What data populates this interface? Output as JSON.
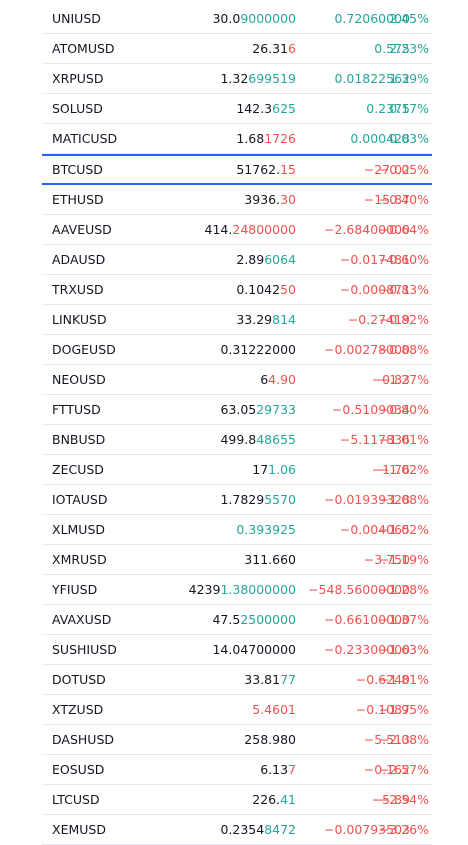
{
  "watchlist": {
    "rows": [
      {
        "symbol": "UNIUSD",
        "last_base": "30.0",
        "last_tail": "9000000",
        "last_dir": "up",
        "change": "0.72060000",
        "change_pct": "2.45%",
        "dir": "up"
      },
      {
        "symbol": "ATOMUSD",
        "last_base": "26.31",
        "last_tail": "6",
        "last_dir": "down",
        "change": "0.575",
        "change_pct": "2.23%",
        "dir": "up"
      },
      {
        "symbol": "XRPUSD",
        "last_base": "1.32",
        "last_tail": "699519",
        "last_dir": "up",
        "change": "0.01822562",
        "change_pct": "1.39%",
        "dir": "up"
      },
      {
        "symbol": "SOLUSD",
        "last_base": "142.3",
        "last_tail": "625",
        "last_dir": "up",
        "change": "0.2375",
        "change_pct": "0.17%",
        "dir": "up"
      },
      {
        "symbol": "MATICUSD",
        "last_base": "1.68",
        "last_tail": "1726",
        "last_dir": "down",
        "change": "0.000428",
        "change_pct": "0.03%",
        "dir": "up"
      },
      {
        "symbol": "BTCUSD",
        "last_base": "51762.",
        "last_tail": "15",
        "last_dir": "down",
        "change": "−27.02",
        "change_pct": "−0.05%",
        "dir": "down",
        "selected": true
      },
      {
        "symbol": "ETHUSD",
        "last_base": "3936.",
        "last_tail": "30",
        "last_dir": "down",
        "change": "−15.87",
        "change_pct": "−0.40%",
        "dir": "down"
      },
      {
        "symbol": "AAVEUSD",
        "last_base": "414.",
        "last_tail": "24800000",
        "last_dir": "down",
        "change": "−2.68400000",
        "change_pct": "−0.64%",
        "dir": "down"
      },
      {
        "symbol": "ADAUSD",
        "last_base": "2.89",
        "last_tail": "6064",
        "last_dir": "up",
        "change": "−0.017481",
        "change_pct": "−0.60%",
        "dir": "down"
      },
      {
        "symbol": "TRXUSD",
        "last_base": "0.1042",
        "last_tail": "50",
        "last_dir": "down",
        "change": "−0.000871",
        "change_pct": "−0.83%",
        "dir": "down"
      },
      {
        "symbol": "LINKUSD",
        "last_base": "33.29",
        "last_tail": "814",
        "last_dir": "up",
        "change": "−0.27419",
        "change_pct": "−0.82%",
        "dir": "down"
      },
      {
        "symbol": "DOGEUSD",
        "last_base": "0.31222000",
        "last_tail": "",
        "last_dir": "none",
        "change": "−0.00278000",
        "change_pct": "−0.88%",
        "dir": "down"
      },
      {
        "symbol": "NEOUSD",
        "last_base": "6",
        "last_tail": "4.90",
        "last_dir": "down",
        "change": "−0.83",
        "change_pct": "−1.27%",
        "dir": "down"
      },
      {
        "symbol": "FTTUSD",
        "last_base": "63.05",
        "last_tail": "29733",
        "last_dir": "up",
        "change": "−0.5109034",
        "change_pct": "−0.80%",
        "dir": "down"
      },
      {
        "symbol": "BNBUSD",
        "last_base": "499.8",
        "last_tail": "48655",
        "last_dir": "up",
        "change": "−5.117836",
        "change_pct": "−1.01%",
        "dir": "down"
      },
      {
        "symbol": "ZECUSD",
        "last_base": "17",
        "last_tail": "1.06",
        "last_dir": "up",
        "change": "−1.76",
        "change_pct": "−1.02%",
        "dir": "down"
      },
      {
        "symbol": "IOTAUSD",
        "last_base": "1.7829",
        "last_tail": "5570",
        "last_dir": "up",
        "change": "−0.01939328",
        "change_pct": "−1.08%",
        "dir": "down"
      },
      {
        "symbol": "XLMUSD",
        "last_base": "",
        "last_tail": "0.393925",
        "last_dir": "up",
        "change": "−0.004065",
        "change_pct": "−1.02%",
        "dir": "down"
      },
      {
        "symbol": "XMRUSD",
        "last_base": "311.660",
        "last_tail": "",
        "last_dir": "none",
        "change": "−3.750",
        "change_pct": "−1.19%",
        "dir": "down"
      },
      {
        "symbol": "YFIUSD",
        "last_base": "4239",
        "last_tail": "1.38000000",
        "last_dir": "up",
        "change": "−548.56000000",
        "change_pct": "−1.28%",
        "dir": "down"
      },
      {
        "symbol": "AVAXUSD",
        "last_base": "47.5",
        "last_tail": "2500000",
        "last_dir": "up",
        "change": "−0.66100000",
        "change_pct": "−1.37%",
        "dir": "down"
      },
      {
        "symbol": "SUSHIUSD",
        "last_base": "14.04700000",
        "last_tail": "",
        "last_dir": "none",
        "change": "−0.23300000",
        "change_pct": "−1.63%",
        "dir": "down"
      },
      {
        "symbol": "DOTUSD",
        "last_base": "33.81",
        "last_tail": "77",
        "last_dir": "up",
        "change": "−0.6240",
        "change_pct": "−1.81%",
        "dir": "down"
      },
      {
        "symbol": "XTZUSD",
        "last_base": "",
        "last_tail": "5.4601",
        "last_dir": "down",
        "change": "−0.1087",
        "change_pct": "−1.95%",
        "dir": "down"
      },
      {
        "symbol": "DASHUSD",
        "last_base": "258.980",
        "last_tail": "",
        "last_dir": "none",
        "change": "−5.513",
        "change_pct": "−2.08%",
        "dir": "down"
      },
      {
        "symbol": "EOSUSD",
        "last_base": "6.13",
        "last_tail": "7",
        "last_dir": "down",
        "change": "−0.162",
        "change_pct": "−2.57%",
        "dir": "down"
      },
      {
        "symbol": "LTCUSD",
        "last_base": "226.",
        "last_tail": "41",
        "last_dir": "up",
        "change": "−5.89",
        "change_pct": "−2.54%",
        "dir": "down"
      },
      {
        "symbol": "XEMUSD",
        "last_base": "0.2354",
        "last_tail": "8472",
        "last_dir": "up",
        "change": "−0.00793503",
        "change_pct": "−3.26%",
        "dir": "down"
      }
    ]
  },
  "colors": {
    "up": "#26a69a",
    "down": "#ef5350",
    "selected_border": "#2962ff"
  }
}
